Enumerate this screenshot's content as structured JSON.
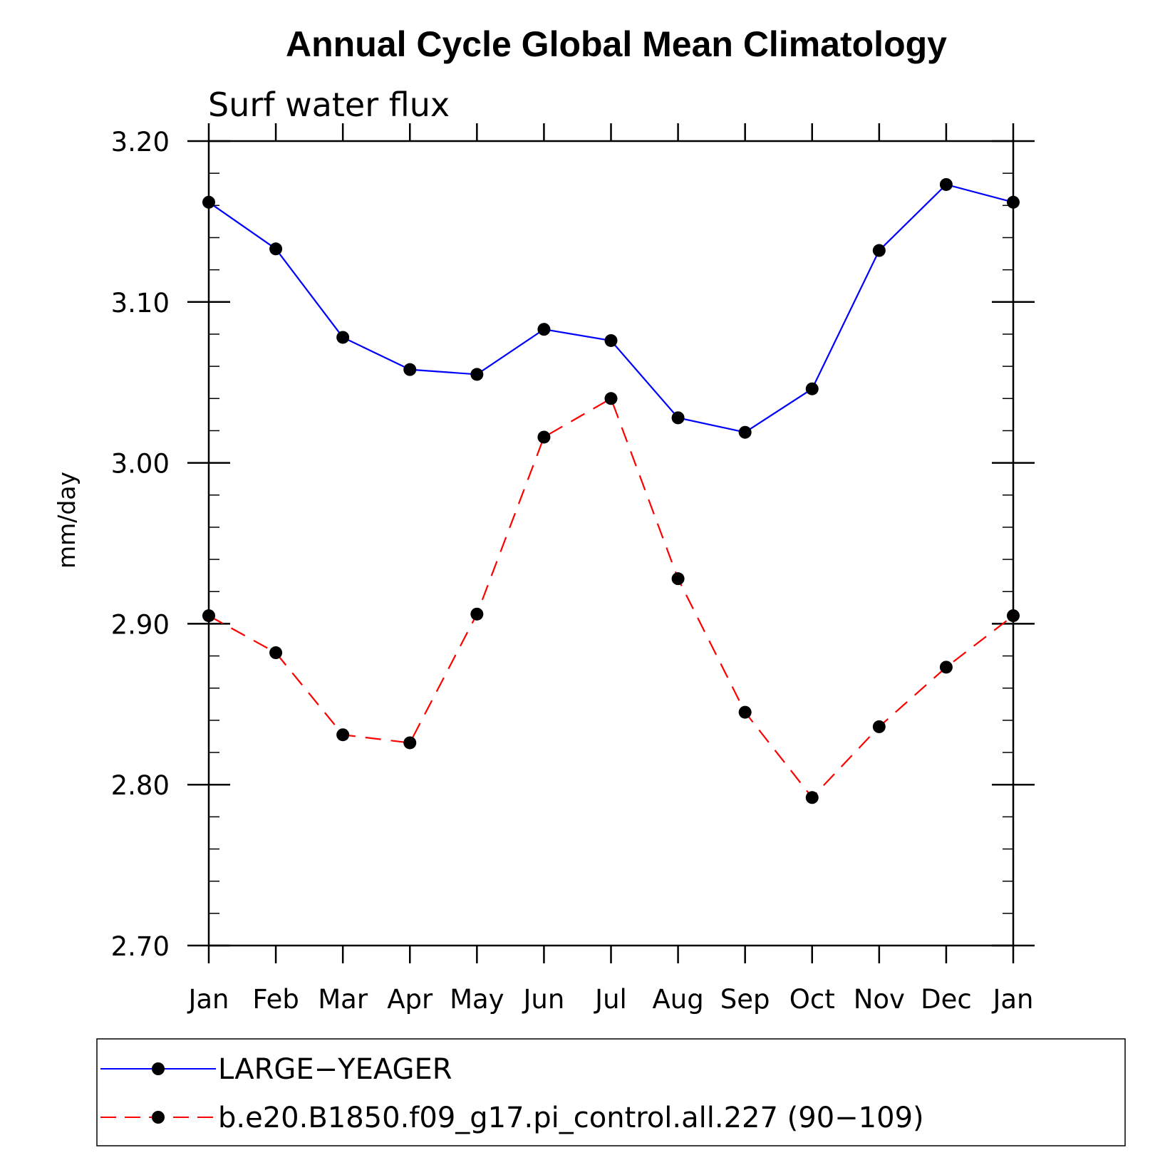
{
  "chart_data": {
    "type": "line",
    "title": "Annual Cycle Global Mean Climatology",
    "subtitle": "Surf water flux",
    "ylabel": "mm/day",
    "xlabel": "",
    "categories": [
      "Jan",
      "Feb",
      "Mar",
      "Apr",
      "May",
      "Jun",
      "Jul",
      "Aug",
      "Sep",
      "Oct",
      "Nov",
      "Dec",
      "Jan"
    ],
    "ylim": [
      2.7,
      3.2
    ],
    "yticks": [
      "2.70",
      "2.80",
      "2.90",
      "3.00",
      "3.10",
      "3.20"
    ],
    "grid": false,
    "legend_position": "bottom",
    "series": [
      {
        "name": "LARGE−YEAGER",
        "color": "#0000ff",
        "style": "solid",
        "marker": "filled-circle",
        "values": [
          3.162,
          3.133,
          3.078,
          3.058,
          3.055,
          3.083,
          3.076,
          3.028,
          3.019,
          3.046,
          3.132,
          3.173,
          3.162
        ]
      },
      {
        "name": "b.e20.B1850.f09_g17.pi_control.all.227 (90−109)",
        "color": "#ff0000",
        "style": "dashed",
        "marker": "filled-circle",
        "values": [
          2.905,
          2.882,
          2.831,
          2.826,
          2.906,
          3.016,
          3.04,
          2.928,
          2.845,
          2.792,
          2.836,
          2.873,
          2.905
        ]
      }
    ]
  }
}
